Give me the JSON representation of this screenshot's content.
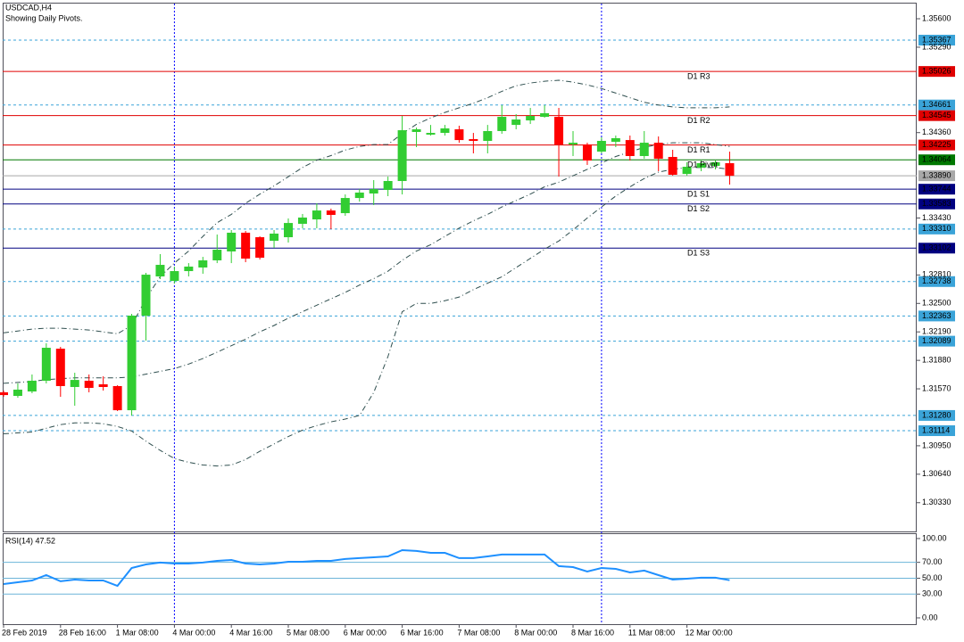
{
  "chart_data": [
    {
      "type": "candlestick",
      "title": "USDCAD,H4",
      "subtitle": "Showing Daily Pivots.",
      "categories": [
        "28 Feb 2019",
        null,
        null,
        null,
        "28 Feb 16:00",
        null,
        null,
        null,
        "1 Mar 08:00",
        null,
        null,
        null,
        "4 Mar 00:00",
        null,
        null,
        null,
        "4 Mar 16:00",
        null,
        null,
        null,
        "5 Mar 08:00",
        null,
        null,
        null,
        "6 Mar 00:00",
        null,
        null,
        null,
        "6 Mar 16:00",
        null,
        null,
        null,
        "7 Mar 08:00",
        null,
        null,
        null,
        "8 Mar 00:00",
        null,
        null,
        null,
        "8 Mar 16:00",
        null,
        null,
        null,
        "11 Mar 08:00",
        null,
        null,
        null,
        "12 Mar 00:00",
        null,
        null,
        null
      ],
      "open": [
        1.31532,
        1.31493,
        1.31541,
        1.31658,
        1.32007,
        1.3159,
        1.31658,
        1.31619,
        1.316,
        1.31337,
        1.32367,
        1.32794,
        1.32745,
        1.32852,
        1.32891,
        1.32969,
        1.33066,
        1.3327,
        1.33221,
        1.33182,
        1.33221,
        1.33367,
        1.33415,
        1.33512,
        1.33483,
        1.33648,
        1.33697,
        1.33736,
        1.33833,
        1.34367,
        1.34338,
        1.34357,
        1.34396,
        1.34289,
        1.3427,
        1.34377,
        1.34444,
        1.34493,
        1.34532,
        1.34532,
        1.34231,
        1.34231,
        1.34153,
        1.3426,
        1.34279,
        1.34105,
        1.3425,
        1.34095,
        1.3391,
        1.33978,
        1.33998,
        1.34027
      ],
      "high": [
        1.31551,
        1.31629,
        1.31726,
        1.32066,
        1.32027,
        1.31745,
        1.31726,
        1.31706,
        1.31609,
        1.32386,
        1.32833,
        1.33037,
        1.32901,
        1.32939,
        1.33007,
        1.3325,
        1.33299,
        1.33289,
        1.33231,
        1.33299,
        1.33425,
        1.33474,
        1.3359,
        1.33532,
        1.33687,
        1.33745,
        1.33843,
        1.33881,
        1.34542,
        1.34415,
        1.34444,
        1.34444,
        1.34435,
        1.34357,
        1.34444,
        1.34658,
        1.34561,
        1.34629,
        1.34658,
        1.34629,
        1.34377,
        1.3425,
        1.34309,
        1.34328,
        1.34328,
        1.34377,
        1.34318,
        1.34173,
        1.34037,
        1.34056,
        1.34056,
        1.34153
      ],
      "low": [
        1.31483,
        1.31473,
        1.31522,
        1.31629,
        1.31483,
        1.31386,
        1.31532,
        1.31551,
        1.31328,
        1.31279,
        1.32095,
        1.32765,
        1.32716,
        1.32794,
        1.32823,
        1.32939,
        1.32939,
        1.32949,
        1.32978,
        1.33105,
        1.33163,
        1.33318,
        1.33318,
        1.33308,
        1.33454,
        1.33609,
        1.33571,
        1.33668,
        1.33687,
        1.34202,
        1.34328,
        1.34328,
        1.3425,
        1.34134,
        1.34134,
        1.34347,
        1.34396,
        1.34454,
        1.34522,
        1.33881,
        1.34105,
        1.34008,
        1.34134,
        1.34202,
        1.34056,
        1.34076,
        1.3394,
        1.33891,
        1.33891,
        1.3394,
        1.33959,
        1.33794
      ],
      "close": [
        1.31502,
        1.31561,
        1.31658,
        1.32017,
        1.316,
        1.31667,
        1.3158,
        1.3159,
        1.31337,
        1.32367,
        1.32813,
        1.3292,
        1.32852,
        1.32901,
        1.32969,
        1.33085,
        1.3327,
        1.32988,
        1.32998,
        1.3326,
        1.33376,
        1.33435,
        1.33512,
        1.33464,
        1.33648,
        1.33707,
        1.33745,
        1.33833,
        1.34386,
        1.34396,
        1.34357,
        1.34406,
        1.34279,
        1.3427,
        1.34377,
        1.34532,
        1.34503,
        1.34542,
        1.34571,
        1.34231,
        1.3425,
        1.34056,
        1.3427,
        1.34299,
        1.34105,
        1.3425,
        1.34076,
        1.33901,
        1.33988,
        1.34027,
        1.34037,
        1.3389
      ],
      "up_color": "#32cd32",
      "down_color": "#ff0000",
      "bands": [
        {
          "color": "#2f4f4f",
          "values": [
            1.3218,
            1.322,
            1.3222,
            1.3223,
            1.3223,
            1.3222,
            1.3221,
            1.3219,
            1.3217,
            1.3226,
            1.3255,
            1.3279,
            1.3294,
            1.3307,
            1.3323,
            1.3338,
            1.3347,
            1.3359,
            1.3369,
            1.3378,
            1.3388,
            1.3398,
            1.3406,
            1.3411,
            1.3417,
            1.3421,
            1.3423,
            1.3423,
            1.3435,
            1.3445,
            1.3452,
            1.3458,
            1.3463,
            1.3468,
            1.3474,
            1.3481,
            1.3487,
            1.349,
            1.3492,
            1.3493,
            1.3491,
            1.3488,
            1.3484,
            1.3479,
            1.3474,
            1.3469,
            1.3466,
            1.3464,
            1.3463,
            1.3463,
            1.3463,
            1.3464
          ]
        },
        {
          "color": "#2f4f4f",
          "values": [
            1.3163,
            1.3164,
            1.3165,
            1.3167,
            1.3168,
            1.3169,
            1.3169,
            1.3169,
            1.3169,
            1.317,
            1.3173,
            1.3176,
            1.3179,
            1.3184,
            1.319,
            1.3197,
            1.3204,
            1.3211,
            1.3219,
            1.3226,
            1.3234,
            1.3241,
            1.3248,
            1.3255,
            1.3262,
            1.327,
            1.3277,
            1.3285,
            1.3297,
            1.3307,
            1.3314,
            1.3323,
            1.3332,
            1.334,
            1.3347,
            1.3355,
            1.3362,
            1.3369,
            1.3377,
            1.3382,
            1.3389,
            1.3396,
            1.3403,
            1.341,
            1.3415,
            1.342,
            1.3423,
            1.3425,
            1.3425,
            1.3425,
            1.3423,
            1.3421
          ]
        },
        {
          "color": "#2f4f4f",
          "values": [
            1.3108,
            1.3109,
            1.311,
            1.3114,
            1.3118,
            1.312,
            1.312,
            1.3119,
            1.3116,
            1.3111,
            1.31,
            1.309,
            1.3081,
            1.3077,
            1.3074,
            1.3073,
            1.3074,
            1.308,
            1.3089,
            1.3097,
            1.3105,
            1.3112,
            1.3117,
            1.3121,
            1.3124,
            1.3128,
            1.3153,
            1.3192,
            1.3241,
            1.325,
            1.325,
            1.3253,
            1.3257,
            1.3265,
            1.3272,
            1.3279,
            1.3289,
            1.3299,
            1.3309,
            1.3318,
            1.333,
            1.3343,
            1.3355,
            1.3367,
            1.3377,
            1.3386,
            1.3393,
            1.3396,
            1.3398,
            1.3398,
            1.3398,
            1.3396
          ]
        }
      ],
      "pivots": [
        {
          "name": "D1 R3",
          "value": 1.35026,
          "color": "#e00000"
        },
        {
          "name": "D1 R2",
          "value": 1.34545,
          "color": "#e00000"
        },
        {
          "name": "D1 R1",
          "value": 1.34225,
          "color": "#e00000"
        },
        {
          "name": "D1 Pivot",
          "value": 1.34064,
          "color": "#007800"
        },
        {
          "name": "D1 S1",
          "value": 1.33744,
          "color": "#000080"
        },
        {
          "name": "D1 S2",
          "value": 1.33583,
          "color": "#000080"
        },
        {
          "name": "D1 S3",
          "value": 1.33102,
          "color": "#000080"
        }
      ],
      "levels": {
        "values": [
          1.35367,
          1.34661,
          1.3331,
          1.32738,
          1.32363,
          1.32089,
          1.3128,
          1.31114
        ],
        "value_labels": [
          "1.35367",
          "1.34661",
          "1.33310",
          "1.32738",
          "1.32363",
          "1.32089",
          "1.31280",
          "1.31114"
        ],
        "color": "#3aa3d8"
      },
      "bid": {
        "value": 1.3389,
        "label": "1.33890",
        "color": "#a8a8a8"
      },
      "ylim": [
        1.30017,
        1.35775
      ],
      "yticks": [
        {
          "value": 1.356,
          "label": "1.35600"
        },
        {
          "value": 1.3529,
          "label": "1.35290"
        },
        {
          "value": 1.3436,
          "label": "1.34360"
        },
        {
          "value": 1.3343,
          "label": "1.33430"
        },
        {
          "value": 1.3281,
          "label": "1.32810"
        },
        {
          "value": 1.325,
          "label": "1.32500"
        },
        {
          "value": 1.3219,
          "label": "1.32190"
        },
        {
          "value": 1.3188,
          "label": "1.31880"
        },
        {
          "value": 1.3157,
          "label": "1.31570"
        },
        {
          "value": 1.3095,
          "label": "1.30950"
        },
        {
          "value": 1.3064,
          "label": "1.30640"
        },
        {
          "value": 1.3033,
          "label": "1.30330"
        }
      ]
    },
    {
      "type": "line",
      "title": "RSI(14) 47.52",
      "series": [
        {
          "color": "#1e90ff",
          "values": [
            42.7,
            44.9,
            47.2,
            53.9,
            46.1,
            48.3,
            47.2,
            47.2,
            40.4,
            62.9,
            67.4,
            69.7,
            68.5,
            68.5,
            69.7,
            71.9,
            73.0,
            68.5,
            67.4,
            68.5,
            70.8,
            70.8,
            71.9,
            71.9,
            74.2,
            75.3,
            76.4,
            77.5,
            85.4,
            84.3,
            82.0,
            82.0,
            75.3,
            75.3,
            77.5,
            79.8,
            79.8,
            79.8,
            79.8,
            65.2,
            64.0,
            58.4,
            62.9,
            61.8,
            57.3,
            59.6,
            53.9,
            48.3,
            49.4,
            50.6,
            50.6,
            47.52
          ]
        }
      ],
      "level_lines": [
        70,
        50,
        30
      ],
      "level_color": "#6cb4d8",
      "ylim": [
        -7.9,
        106.7
      ],
      "yticks": [
        {
          "value": 100,
          "label": "100.00"
        },
        {
          "value": 70,
          "label": "70.00"
        },
        {
          "value": 50,
          "label": "50.00"
        },
        {
          "value": 30,
          "label": "30.00"
        },
        {
          "value": 0,
          "label": "0.00"
        }
      ]
    }
  ]
}
